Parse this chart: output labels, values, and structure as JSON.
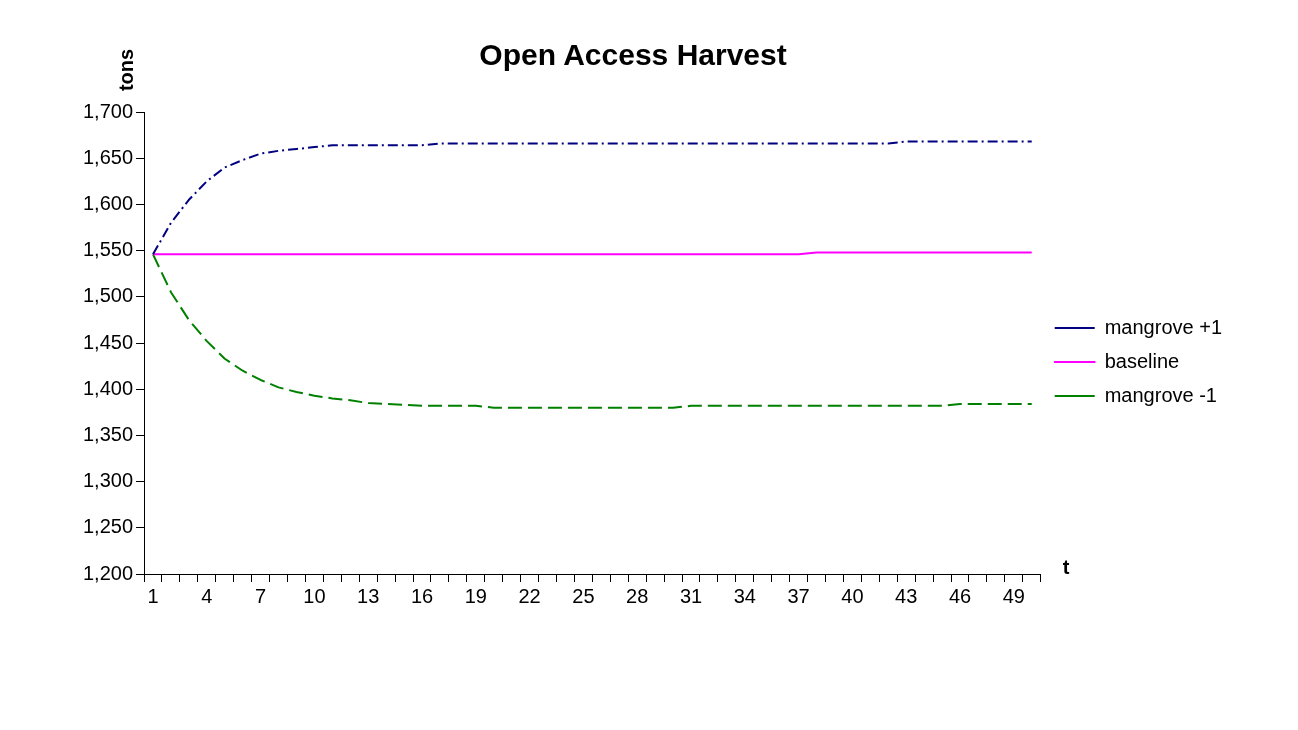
{
  "chart_data": {
    "type": "line",
    "title": "Open Access Harvest",
    "xlabel": "t",
    "ylabel": "tons",
    "categories": [
      "1",
      null,
      null,
      "4",
      null,
      null,
      "7",
      null,
      null,
      "10",
      null,
      null,
      "13",
      null,
      null,
      "16",
      null,
      null,
      "19",
      null,
      null,
      "22",
      null,
      null,
      "25",
      null,
      null,
      "28",
      null,
      null,
      "31",
      null,
      null,
      "34",
      null,
      null,
      "37",
      null,
      null,
      "40",
      null,
      null,
      "43",
      null,
      null,
      "46",
      null,
      null,
      "49",
      null
    ],
    "series": [
      {
        "name": "mangrove +1",
        "color": "#000080",
        "line_style": "dashdot",
        "values": [
          1546,
          1580,
          1605,
          1625,
          1640,
          1648,
          1655,
          1658,
          1660,
          1662,
          1664,
          1664,
          1664,
          1664,
          1664,
          1664,
          1666,
          1666,
          1666,
          1666,
          1666,
          1666,
          1666,
          1666,
          1666,
          1666,
          1666,
          1666,
          1666,
          1666,
          1666,
          1666,
          1666,
          1666,
          1666,
          1666,
          1666,
          1666,
          1666,
          1666,
          1666,
          1666,
          1668,
          1668,
          1668,
          1668,
          1668,
          1668,
          1668,
          1668
        ]
      },
      {
        "name": "baseline",
        "color": "#ff00ff",
        "line_style": "solid",
        "values": [
          1546,
          1546,
          1546,
          1546,
          1546,
          1546,
          1546,
          1546,
          1546,
          1546,
          1546,
          1546,
          1546,
          1546,
          1546,
          1546,
          1546,
          1546,
          1546,
          1546,
          1546,
          1546,
          1546,
          1546,
          1546,
          1546,
          1546,
          1546,
          1546,
          1546,
          1546,
          1546,
          1546,
          1546,
          1546,
          1546,
          1546,
          1548,
          1548,
          1548,
          1548,
          1548,
          1548,
          1548,
          1548,
          1548,
          1548,
          1548,
          1548,
          1548
        ]
      },
      {
        "name": "mangrove -1",
        "color": "#008000",
        "line_style": "dashed",
        "values": [
          1546,
          1505,
          1475,
          1452,
          1433,
          1420,
          1410,
          1402,
          1397,
          1393,
          1390,
          1388,
          1385,
          1384,
          1383,
          1382,
          1382,
          1382,
          1382,
          1380,
          1380,
          1380,
          1380,
          1380,
          1380,
          1380,
          1380,
          1380,
          1380,
          1380,
          1382,
          1382,
          1382,
          1382,
          1382,
          1382,
          1382,
          1382,
          1382,
          1382,
          1382,
          1382,
          1382,
          1382,
          1382,
          1384,
          1384,
          1384,
          1384,
          1384
        ]
      }
    ],
    "ylim": [
      1200,
      1700
    ],
    "yticks": [
      {
        "value": 1200,
        "label": "1,200"
      },
      {
        "value": 1250,
        "label": "1,250"
      },
      {
        "value": 1300,
        "label": "1,300"
      },
      {
        "value": 1350,
        "label": "1,350"
      },
      {
        "value": 1400,
        "label": "1,400"
      },
      {
        "value": 1450,
        "label": "1,450"
      },
      {
        "value": 1500,
        "label": "1,500"
      },
      {
        "value": 1550,
        "label": "1,550"
      },
      {
        "value": 1600,
        "label": "1,600"
      },
      {
        "value": 1650,
        "label": "1,650"
      },
      {
        "value": 1700,
        "label": "1,700"
      }
    ],
    "grid": false,
    "legend": "right",
    "marker": "none"
  }
}
